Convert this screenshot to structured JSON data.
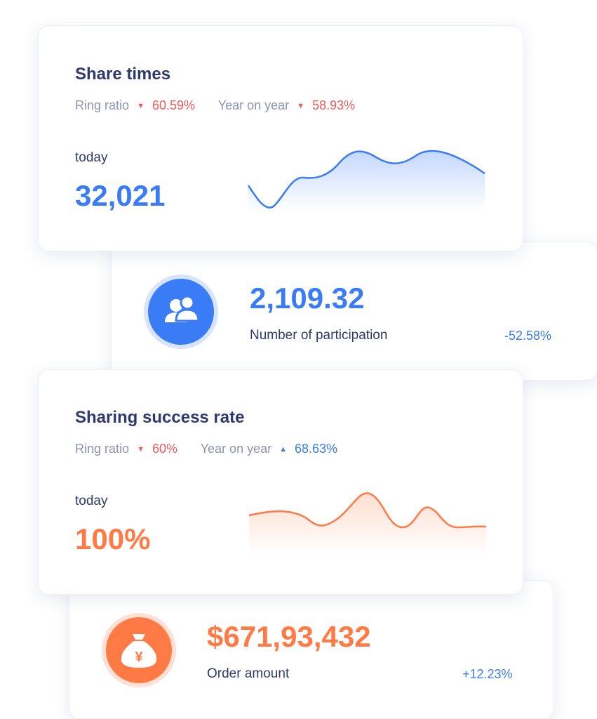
{
  "share_times": {
    "title": "Share times",
    "ring_label": "Ring ratio",
    "ring_value": "60.59%",
    "ring_dir": "down",
    "yoy_label": "Year on year",
    "yoy_value": "58.93%",
    "yoy_dir": "down",
    "today_label": "today",
    "today_value": "32,021",
    "color": "#3a7cf5"
  },
  "participation": {
    "value": "2,109.32",
    "label": "Number of participation",
    "change": "-52.58%",
    "icon": "users-icon"
  },
  "success_rate": {
    "title": "Sharing success rate",
    "ring_label": "Ring ratio",
    "ring_value": "60%",
    "ring_dir": "down",
    "yoy_label": "Year on year",
    "yoy_value": "68.63%",
    "yoy_dir": "up",
    "today_label": "today",
    "today_value": "100%",
    "color": "#ff7a45"
  },
  "order": {
    "value": "$671,93,432",
    "label": "Order amount",
    "change": "+12.23%",
    "icon": "money-bag-yen-icon"
  }
}
